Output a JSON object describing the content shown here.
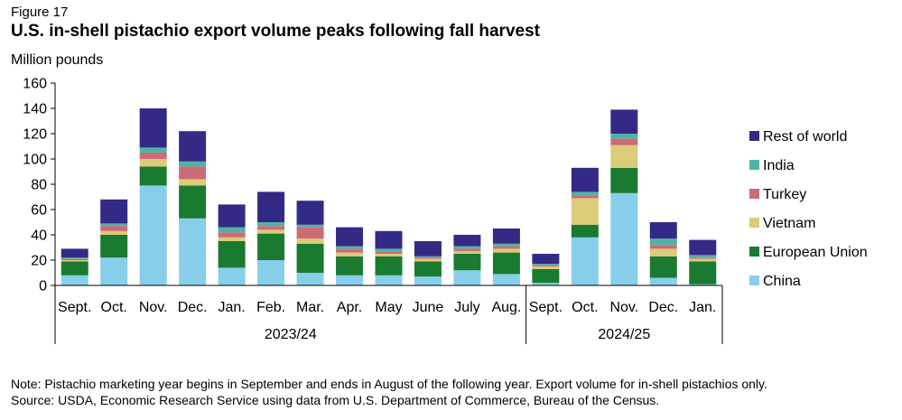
{
  "figure_label": "Figure 17",
  "notes": {
    "note": "Note: Pistachio marketing year begins in September and ends in August of the following year. Export volume for in-shell pistachios only.",
    "source": "Source: USDA, Economic Research Service using data from U.S. Department of Commerce, Bureau of the Census."
  },
  "colors": {
    "China": "#87ceeb",
    "European Union": "#1a7a30",
    "Vietnam": "#dccb78",
    "Turkey": "#cd6a78",
    "India": "#4fb3a4",
    "Rest of world": "#332a86"
  },
  "chart_data": {
    "type": "bar",
    "stacked": true,
    "title": "U.S. in-shell pistachio export volume peaks following fall harvest",
    "ylabel": "Million pounds",
    "ylim": [
      0,
      160
    ],
    "yticks": [
      0,
      20,
      40,
      60,
      80,
      100,
      120,
      140,
      160
    ],
    "categories": [
      "Sept.",
      "Oct.",
      "Nov.",
      "Dec.",
      "Jan.",
      "Feb.",
      "Mar.",
      "Apr.",
      "May",
      "June",
      "July",
      "Aug.",
      "Sept.",
      "Oct.",
      "Nov.",
      "Dec.",
      "Jan."
    ],
    "groups": [
      {
        "label": "2023/24",
        "count": 12
      },
      {
        "label": "2024/25",
        "count": 5
      }
    ],
    "series": [
      {
        "name": "China",
        "values": [
          8,
          22,
          79,
          53,
          14,
          20,
          10,
          8,
          8,
          7,
          12,
          9,
          2,
          38,
          73,
          6,
          1
        ]
      },
      {
        "name": "European Union",
        "values": [
          11,
          18,
          15,
          26,
          21,
          21,
          23,
          15,
          15,
          12,
          13,
          17,
          11,
          10,
          20,
          17,
          18
        ]
      },
      {
        "name": "Vietnam",
        "values": [
          1,
          3,
          6,
          5,
          3,
          3,
          4,
          3,
          2,
          2,
          2,
          3,
          2,
          21,
          18,
          6,
          2
        ]
      },
      {
        "name": "Turkey",
        "values": [
          1,
          4,
          5,
          10,
          4,
          3,
          9,
          3,
          2,
          1,
          2,
          2,
          1,
          2,
          5,
          3,
          1
        ]
      },
      {
        "name": "India",
        "values": [
          1,
          2,
          4,
          4,
          4,
          3,
          2,
          2,
          2,
          1,
          2,
          2,
          1,
          3,
          4,
          5,
          2
        ]
      },
      {
        "name": "Rest of world",
        "values": [
          7,
          19,
          31,
          24,
          18,
          24,
          19,
          15,
          14,
          12,
          9,
          12,
          8,
          19,
          19,
          13,
          12
        ]
      }
    ],
    "legend_order": [
      "Rest of world",
      "India",
      "Turkey",
      "Vietnam",
      "European Union",
      "China"
    ],
    "legend_position": "right"
  }
}
